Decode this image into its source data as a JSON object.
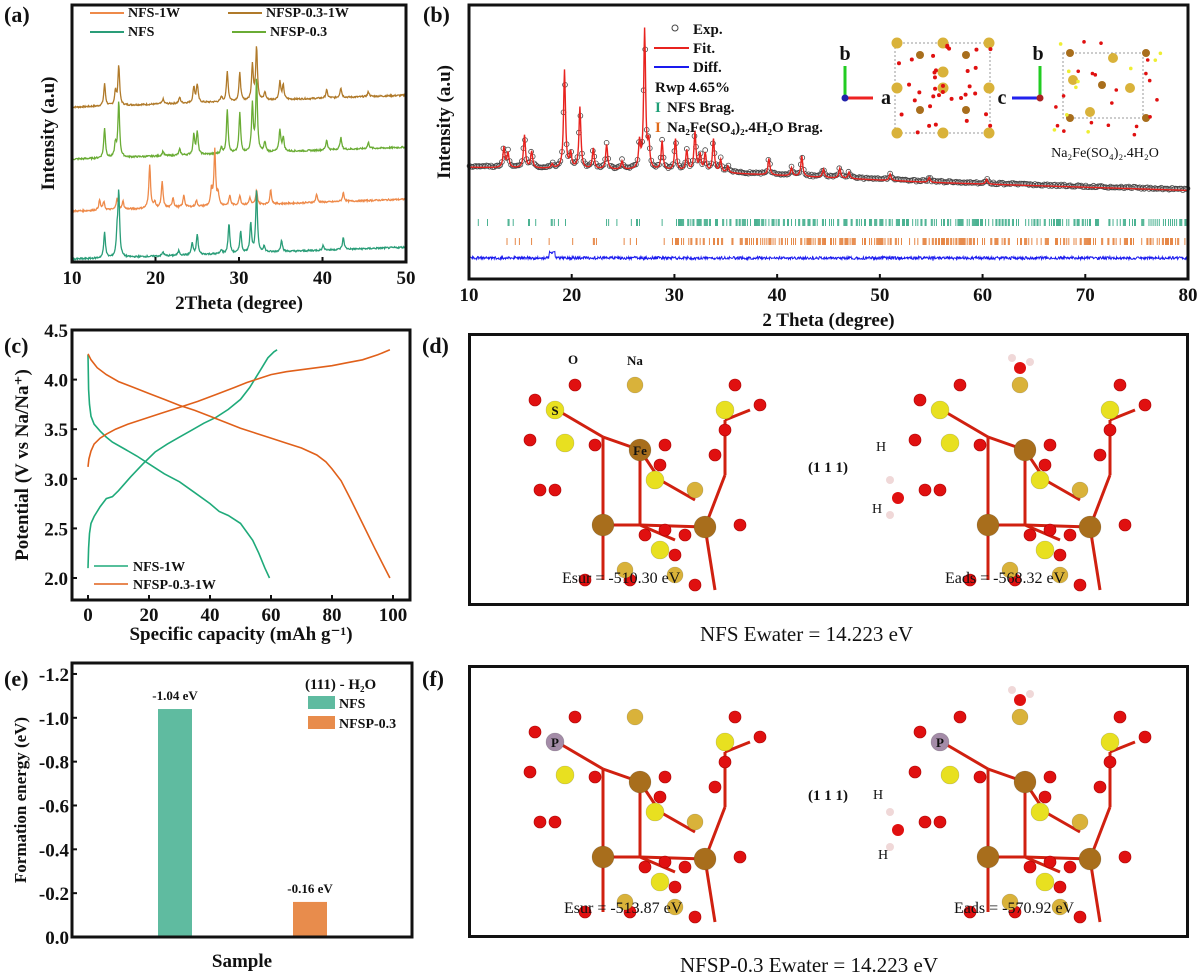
{
  "panels": {
    "a": {
      "label": "(a)"
    },
    "b": {
      "label": "(b)"
    },
    "c": {
      "label": "(c)"
    },
    "d": {
      "label": "(d)",
      "atom_labels": {
        "O": "O",
        "Na": "Na",
        "S": "S",
        "Fe": "Fe"
      },
      "surface_label": "(1 1 1)",
      "h_label": "H",
      "esur": "Esur = -510.30 eV",
      "eads": "Eads = -568.32 eV",
      "caption": "NFS  Ewater = 14.223 eV"
    },
    "e": {
      "label": "(e)"
    },
    "f": {
      "label": "(f)",
      "atom_labels": {
        "P": "P"
      },
      "surface_label": "(1 1 1)",
      "h_label": "H",
      "esur": "Esur = -513.87 eV",
      "eads": "Eads = -570.92 eV",
      "caption": "NFSP-0.3  Ewater = 14.223 eV"
    }
  },
  "colors": {
    "nfs_1w": "#ee8a4a",
    "nfsp_1w": "#b07a2a",
    "nfs": "#2a9d78",
    "nfsp": "#6aac35",
    "fit": "#e8231f",
    "diff": "#1a1aee",
    "brag_nfs": "#1f9f77",
    "brag_hyd": "#e06a1a",
    "c_nfs": "#1faa7a",
    "c_nfsp": "#e0601a",
    "bar_nfs": "#5fbba0",
    "bar_nfsp": "#e88c4c",
    "oxygen": "#e01010",
    "sulfur": "#e8e020",
    "iron": "#a86e1c",
    "sodium": "#d9b23a",
    "phosphorus": "#a48ca8",
    "hydrogen": "#f0d8d8"
  },
  "chart_data": [
    {
      "id": "a",
      "type": "line",
      "title": "",
      "xlabel": "2Theta (degree)",
      "ylabel": "Intensity (a.u)",
      "xlim": [
        10,
        50
      ],
      "xticks": [
        10,
        20,
        30,
        40,
        50
      ],
      "legend": "top",
      "series": [
        {
          "name": "NFSP-0.3-1W",
          "color_key": "nfsp_1w",
          "offset": 3,
          "peaks": [
            [
              13.9,
              0.55
            ],
            [
              15.2,
              0.35
            ],
            [
              15.6,
              1.0
            ],
            [
              20.9,
              0.12
            ],
            [
              22.9,
              0.15
            ],
            [
              24.6,
              0.4
            ],
            [
              25.0,
              0.45
            ],
            [
              27.9,
              0.12
            ],
            [
              28.6,
              0.75
            ],
            [
              30.1,
              0.7
            ],
            [
              31.6,
              0.9
            ],
            [
              32.1,
              1.35
            ],
            [
              33.1,
              0.2
            ],
            [
              34.9,
              0.45
            ],
            [
              35.3,
              0.35
            ],
            [
              40.5,
              0.2
            ],
            [
              42.2,
              0.25
            ],
            [
              45.5,
              0.12
            ]
          ]
        },
        {
          "name": "NFSP-0.3",
          "color_key": "nfsp",
          "offset": 2,
          "peaks": [
            [
              13.9,
              0.75
            ],
            [
              15.2,
              0.35
            ],
            [
              15.6,
              1.4
            ],
            [
              20.9,
              0.12
            ],
            [
              22.9,
              0.15
            ],
            [
              24.6,
              0.5
            ],
            [
              25.0,
              0.55
            ],
            [
              27.9,
              0.15
            ],
            [
              28.6,
              1.1
            ],
            [
              30.1,
              1.0
            ],
            [
              31.6,
              1.2
            ],
            [
              32.1,
              1.8
            ],
            [
              33.1,
              0.25
            ],
            [
              34.9,
              0.55
            ],
            [
              35.3,
              0.35
            ],
            [
              40.5,
              0.25
            ],
            [
              42.2,
              0.3
            ],
            [
              45.5,
              0.15
            ]
          ]
        },
        {
          "name": "NFS-1W",
          "color_key": "nfs_1w",
          "offset": 1,
          "peaks": [
            [
              13.3,
              0.25
            ],
            [
              13.8,
              0.2
            ],
            [
              15.4,
              0.3
            ],
            [
              16.1,
              0.2
            ],
            [
              19.3,
              1.1
            ],
            [
              19.9,
              0.15
            ],
            [
              20.8,
              0.65
            ],
            [
              22.1,
              0.25
            ],
            [
              23.4,
              0.3
            ],
            [
              24.9,
              0.15
            ],
            [
              26.7,
              0.4
            ],
            [
              27.1,
              1.4
            ],
            [
              27.5,
              0.3
            ],
            [
              28.9,
              0.25
            ],
            [
              30.1,
              0.25
            ],
            [
              31.3,
              0.18
            ],
            [
              32.1,
              0.35
            ],
            [
              33.8,
              0.35
            ],
            [
              39.3,
              0.2
            ],
            [
              42.5,
              0.22
            ]
          ]
        },
        {
          "name": "NFS",
          "color_key": "nfs",
          "offset": 0,
          "peaks": [
            [
              13.9,
              0.65
            ],
            [
              15.4,
              0.5
            ],
            [
              15.6,
              1.6
            ],
            [
              20.9,
              0.1
            ],
            [
              22.8,
              0.12
            ],
            [
              24.4,
              0.3
            ],
            [
              25.0,
              0.5
            ],
            [
              27.9,
              0.1
            ],
            [
              28.8,
              0.75
            ],
            [
              30.2,
              0.55
            ],
            [
              31.4,
              0.75
            ],
            [
              32.1,
              1.55
            ],
            [
              33.0,
              0.15
            ],
            [
              35.1,
              0.3
            ],
            [
              40.1,
              0.12
            ],
            [
              42.5,
              0.3
            ]
          ]
        }
      ]
    },
    {
      "id": "b",
      "type": "line",
      "title": "",
      "xlabel": "2 Theta (degree)",
      "ylabel": "Intensity (a.u)",
      "xlim": [
        10,
        80
      ],
      "xticks": [
        10,
        20,
        30,
        40,
        50,
        60,
        70,
        80
      ],
      "legend": "top-center",
      "legend_items": [
        "Exp.",
        "Fit.",
        "Diff."
      ],
      "rwp": "Rwp 4.65%",
      "brag_labels": [
        {
          "mark": "I",
          "text": "NFS Brag."
        },
        {
          "mark": "I",
          "text": "Na₂Fe(SO₄)₂.4H₂O Brag."
        }
      ],
      "inset_formula": "Na₂Fe(SO₄)₂.4H₂O",
      "inset_axes": [
        "b",
        "a",
        "b",
        "c"
      ],
      "peaks": [
        [
          13.4,
          0.25
        ],
        [
          13.8,
          0.18
        ],
        [
          15.4,
          0.4
        ],
        [
          16.1,
          0.2
        ],
        [
          18.1,
          0.05
        ],
        [
          19.3,
          1.2
        ],
        [
          19.9,
          0.18
        ],
        [
          20.8,
          0.75
        ],
        [
          22.1,
          0.25
        ],
        [
          23.4,
          0.3
        ],
        [
          24.9,
          0.1
        ],
        [
          26.6,
          0.32
        ],
        [
          27.1,
          1.7
        ],
        [
          27.5,
          0.3
        ],
        [
          28.8,
          0.35
        ],
        [
          30.1,
          0.38
        ],
        [
          31.2,
          0.25
        ],
        [
          32.0,
          0.48
        ],
        [
          32.5,
          0.2
        ],
        [
          33.0,
          0.22
        ],
        [
          33.8,
          0.4
        ],
        [
          34.5,
          0.15
        ],
        [
          35.2,
          0.08
        ],
        [
          39.2,
          0.2
        ],
        [
          41.4,
          0.1
        ],
        [
          42.4,
          0.25
        ],
        [
          44.5,
          0.1
        ],
        [
          46.1,
          0.12
        ],
        [
          47.0,
          0.08
        ],
        [
          51.0,
          0.08
        ],
        [
          54.8,
          0.06
        ],
        [
          60.4,
          0.06
        ]
      ]
    },
    {
      "id": "c",
      "type": "line",
      "title": "",
      "xlabel": "Specific capacity (mAh g⁻¹)",
      "ylabel": "Potential (V vs Na/Na⁺)",
      "xlim": [
        -3,
        102
      ],
      "ylim": [
        1.85,
        4.5
      ],
      "xticks": [
        0,
        20,
        40,
        60,
        80,
        100
      ],
      "yticks": [
        2.0,
        2.5,
        3.0,
        3.5,
        4.0,
        4.5
      ],
      "legend": "bottom-left",
      "series": [
        {
          "name": "NFS-1W",
          "color_key": "c_nfs",
          "branches": [
            {
              "x": [
                0,
                0.2,
                0.5,
                1,
                2,
                4,
                6,
                8,
                12,
                16,
                20,
                25,
                30,
                35,
                40,
                43,
                46,
                50,
                54,
                56,
                58,
                59.5
              ],
              "y": [
                4.25,
                3.9,
                3.75,
                3.63,
                3.55,
                3.48,
                3.42,
                3.37,
                3.3,
                3.23,
                3.15,
                3.05,
                2.97,
                2.86,
                2.75,
                2.67,
                2.63,
                2.55,
                2.38,
                2.25,
                2.1,
                2.0
              ]
            },
            {
              "x": [
                0,
                0.2,
                0.5,
                1,
                2,
                4,
                6,
                8,
                10,
                14,
                18,
                22,
                26,
                30,
                34,
                38,
                42,
                46,
                50,
                53,
                55,
                57,
                59,
                61,
                62
              ],
              "y": [
                2.1,
                2.3,
                2.45,
                2.55,
                2.62,
                2.72,
                2.8,
                2.82,
                2.88,
                3.02,
                3.15,
                3.27,
                3.35,
                3.42,
                3.49,
                3.56,
                3.62,
                3.7,
                3.8,
                3.92,
                4.02,
                4.12,
                4.22,
                4.28,
                4.3
              ]
            }
          ]
        },
        {
          "name": "NFSP-0.3-1W",
          "color_key": "c_nfsp",
          "branches": [
            {
              "x": [
                0,
                1,
                3,
                6,
                10,
                15,
                20,
                25,
                30,
                35,
                40,
                45,
                50,
                55,
                60,
                65,
                70,
                75,
                78,
                80,
                83,
                86,
                90,
                94,
                97,
                99
              ],
              "y": [
                4.26,
                4.2,
                4.12,
                4.05,
                3.98,
                3.92,
                3.86,
                3.8,
                3.74,
                3.69,
                3.63,
                3.57,
                3.51,
                3.46,
                3.41,
                3.36,
                3.31,
                3.24,
                3.17,
                3.1,
                2.98,
                2.8,
                2.55,
                2.3,
                2.12,
                2.0
              ]
            },
            {
              "x": [
                0,
                0.3,
                1,
                2,
                4,
                6,
                9,
                13,
                18,
                24,
                30,
                36,
                42,
                48,
                52,
                56,
                60,
                65,
                70,
                75,
                80,
                85,
                90,
                95,
                99
              ],
              "y": [
                3.12,
                3.2,
                3.28,
                3.35,
                3.41,
                3.45,
                3.5,
                3.55,
                3.6,
                3.66,
                3.72,
                3.78,
                3.85,
                3.92,
                3.97,
                4.01,
                4.05,
                4.08,
                4.1,
                4.12,
                4.14,
                4.17,
                4.2,
                4.25,
                4.3
              ]
            }
          ]
        }
      ]
    },
    {
      "id": "e",
      "type": "bar",
      "title": "",
      "xlabel": "Sample",
      "ylabel": "Formation energy (eV)",
      "ylim": [
        0.0,
        -1.25
      ],
      "yticks": [
        "0.0",
        "-0.2",
        "-0.4",
        "-0.6",
        "-0.8",
        "-1.0",
        "-1.2"
      ],
      "legend": "top-right",
      "legend_title": "(111) - H₂O",
      "categories": [
        "NFS",
        "NFSP-0.3"
      ],
      "values": [
        -1.04,
        -0.16
      ],
      "data_labels": [
        "-1.04 eV",
        "-0.16 eV"
      ]
    }
  ]
}
